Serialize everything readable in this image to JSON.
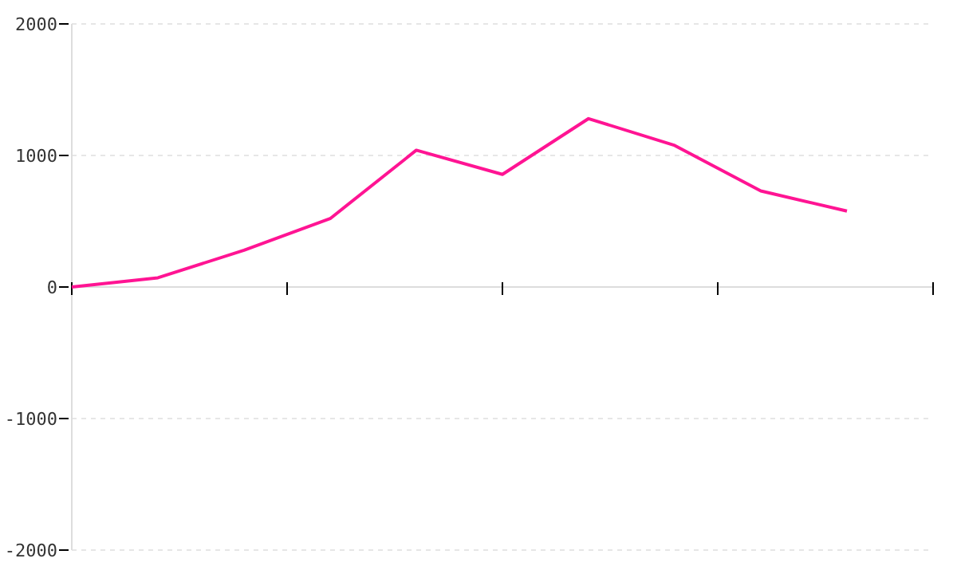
{
  "chart_data": {
    "type": "line",
    "categories": [
      null,
      null,
      null,
      null,
      null,
      null,
      null,
      null,
      null,
      null,
      null
    ],
    "series": [
      {
        "color": "#ff1493",
        "values": [
          0,
          70,
          280,
          520,
          1040,
          856,
          1280,
          1076,
          730,
          577,
          null
        ]
      }
    ],
    "ylim": [
      -2000,
      2000
    ],
    "yticks": [
      -2000,
      -1000,
      0,
      1000,
      2000
    ],
    "grid": "y",
    "tick_labels": "y",
    "line_style": "solid",
    "marker": "none"
  }
}
